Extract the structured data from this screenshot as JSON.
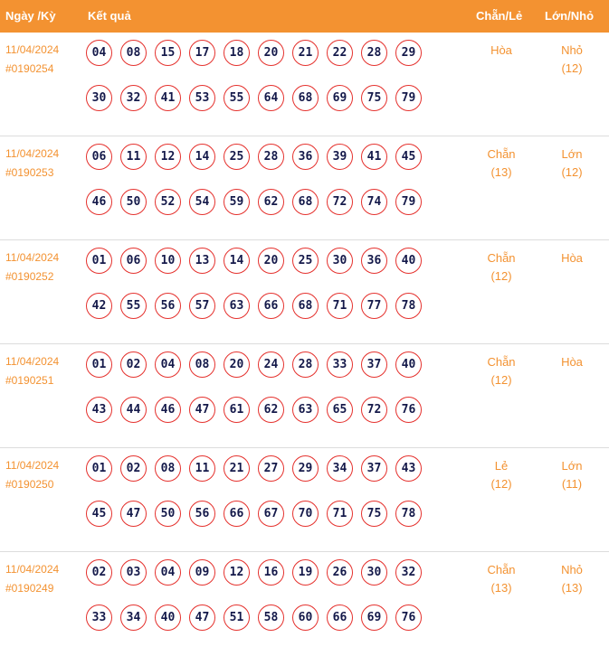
{
  "header": {
    "date_label": "Ngày /Kỳ",
    "result_label": "Kết quả",
    "even_odd_label": "Chẵn/Lẻ",
    "big_small_label": "Lớn/Nhỏ"
  },
  "rows": [
    {
      "date": "11/04/2024",
      "draw": "#0190254",
      "numbers": [
        "04",
        "08",
        "15",
        "17",
        "18",
        "20",
        "21",
        "22",
        "28",
        "29",
        "30",
        "32",
        "41",
        "53",
        "55",
        "64",
        "68",
        "69",
        "75",
        "79"
      ],
      "even_odd": "Hòa",
      "even_odd_count": "",
      "big_small": "Nhỏ",
      "big_small_count": "(12)"
    },
    {
      "date": "11/04/2024",
      "draw": "#0190253",
      "numbers": [
        "06",
        "11",
        "12",
        "14",
        "25",
        "28",
        "36",
        "39",
        "41",
        "45",
        "46",
        "50",
        "52",
        "54",
        "59",
        "62",
        "68",
        "72",
        "74",
        "79"
      ],
      "even_odd": "Chẵn",
      "even_odd_count": "(13)",
      "big_small": "Lớn",
      "big_small_count": "(12)"
    },
    {
      "date": "11/04/2024",
      "draw": "#0190252",
      "numbers": [
        "01",
        "06",
        "10",
        "13",
        "14",
        "20",
        "25",
        "30",
        "36",
        "40",
        "42",
        "55",
        "56",
        "57",
        "63",
        "66",
        "68",
        "71",
        "77",
        "78"
      ],
      "even_odd": "Chẵn",
      "even_odd_count": "(12)",
      "big_small": "Hòa",
      "big_small_count": ""
    },
    {
      "date": "11/04/2024",
      "draw": "#0190251",
      "numbers": [
        "01",
        "02",
        "04",
        "08",
        "20",
        "24",
        "28",
        "33",
        "37",
        "40",
        "43",
        "44",
        "46",
        "47",
        "61",
        "62",
        "63",
        "65",
        "72",
        "76"
      ],
      "even_odd": "Chẵn",
      "even_odd_count": "(12)",
      "big_small": "Hòa",
      "big_small_count": ""
    },
    {
      "date": "11/04/2024",
      "draw": "#0190250",
      "numbers": [
        "01",
        "02",
        "08",
        "11",
        "21",
        "27",
        "29",
        "34",
        "37",
        "43",
        "45",
        "47",
        "50",
        "56",
        "66",
        "67",
        "70",
        "71",
        "75",
        "78"
      ],
      "even_odd": "Lẻ",
      "even_odd_count": "(12)",
      "big_small": "Lớn",
      "big_small_count": "(11)"
    },
    {
      "date": "11/04/2024",
      "draw": "#0190249",
      "numbers": [
        "02",
        "03",
        "04",
        "09",
        "12",
        "16",
        "19",
        "26",
        "30",
        "32",
        "33",
        "34",
        "40",
        "47",
        "51",
        "58",
        "60",
        "66",
        "69",
        "76"
      ],
      "even_odd": "Chẵn",
      "even_odd_count": "(13)",
      "big_small": "Nhỏ",
      "big_small_count": "(13)"
    }
  ]
}
